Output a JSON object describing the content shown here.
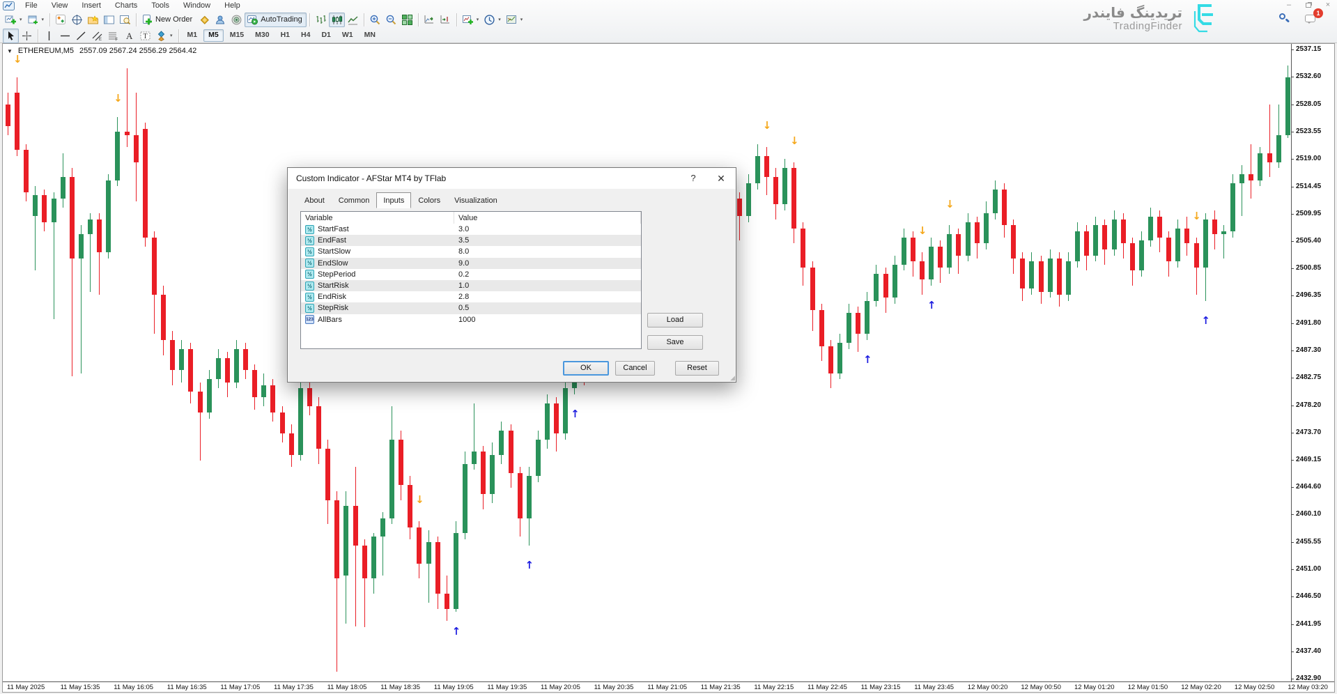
{
  "colors": {
    "up": "#2a925a",
    "down": "#ea1e26",
    "arrow_up": "#1e1ee0",
    "arrow_down": "#f5a81c",
    "accent_brand": "#35dbe5",
    "ok_border": "#4a97dd",
    "badge": "#e33d2e"
  },
  "window_controls": {
    "minimize": "minimize",
    "restore": "restore",
    "close": "close",
    "notification_count": "1"
  },
  "brand": {
    "name_fa": "تریدینگ فایندر",
    "name_en": "TradingFinder"
  },
  "menubar": {
    "items": [
      "File",
      "View",
      "Insert",
      "Charts",
      "Tools",
      "Window",
      "Help"
    ]
  },
  "toolbar": {
    "groups": [
      [
        {
          "icon": "new-chart",
          "caret": true
        },
        {
          "icon": "profiles",
          "caret": true
        }
      ],
      [
        {
          "icon": "market-watch"
        },
        {
          "icon": "data-window"
        },
        {
          "icon": "navigator"
        },
        {
          "icon": "terminal"
        },
        {
          "icon": "strategy-tester"
        }
      ],
      [
        {
          "icon": "new-order",
          "label": "New Order"
        },
        {
          "icon": "metaeditor"
        },
        {
          "icon": "community"
        },
        {
          "icon": "sound"
        },
        {
          "icon": "autotrading",
          "label": "AutoTrading",
          "active": true
        }
      ],
      [
        {
          "icon": "chart-bars"
        },
        {
          "icon": "chart-candles",
          "active": true
        },
        {
          "icon": "chart-line"
        }
      ],
      [
        {
          "icon": "zoom-in"
        },
        {
          "icon": "zoom-out"
        },
        {
          "icon": "tile-windows"
        }
      ],
      [
        {
          "icon": "auto-scroll"
        },
        {
          "icon": "chart-shift"
        }
      ],
      [
        {
          "icon": "indicators",
          "caret": true
        },
        {
          "icon": "periods",
          "caret": true
        },
        {
          "icon": "templates",
          "caret": true
        }
      ]
    ],
    "draw_tools": [
      {
        "icon": "cursor",
        "active": true
      },
      {
        "icon": "crosshair"
      },
      {
        "icon": "vertical-line"
      },
      {
        "icon": "horizontal-line"
      },
      {
        "icon": "trendline"
      },
      {
        "icon": "equidistant-channel"
      },
      {
        "icon": "fibonacci"
      },
      {
        "icon": "text"
      },
      {
        "icon": "text-label"
      },
      {
        "icon": "arrow-objects",
        "caret": true
      }
    ],
    "timeframes": [
      "M1",
      "M5",
      "M15",
      "M30",
      "H1",
      "H4",
      "D1",
      "W1",
      "MN"
    ],
    "active_timeframe": "M5"
  },
  "chart": {
    "symbol": "ETHEREUM,M5",
    "ohlc_line": "2557.09 2567.24 2556.29 2564.42",
    "price_axis": [
      "2537.15",
      "2532.60",
      "2528.05",
      "2523.55",
      "2519.00",
      "2514.45",
      "2509.95",
      "2505.40",
      "2500.85",
      "2496.35",
      "2491.80",
      "2487.30",
      "2482.75",
      "2478.20",
      "2473.70",
      "2469.15",
      "2464.60",
      "2460.10",
      "2455.55",
      "2451.00",
      "2446.50",
      "2441.95",
      "2437.40",
      "2432.90"
    ],
    "time_axis": [
      "11 May 2025",
      "11 May 15:35",
      "11 May 16:05",
      "11 May 16:35",
      "11 May 17:05",
      "11 May 17:35",
      "11 May 18:05",
      "11 May 18:35",
      "11 May 19:05",
      "11 May 19:35",
      "11 May 20:05",
      "11 May 20:35",
      "11 May 21:05",
      "11 May 21:35",
      "11 May 22:15",
      "11 May 22:45",
      "11 May 23:15",
      "11 May 23:45",
      "12 May 00:20",
      "12 May 00:50",
      "12 May 01:20",
      "12 May 01:50",
      "12 May 02:20",
      "12 May 02:50",
      "12 May 03:20"
    ]
  },
  "chart_data": {
    "type": "candlestick",
    "title": "ETHEREUM M5 candlestick chart with AFStar up/down signal arrows",
    "ylim": [
      2432.9,
      2537.15
    ],
    "grid": false,
    "candles": [
      [
        2528,
        2530,
        2523,
        2524.5
      ],
      [
        2530,
        2532.5,
        2519.5,
        2520.5
      ],
      [
        2520.5,
        2521.5,
        2512,
        2513.5
      ],
      [
        2509.5,
        2514.5,
        2500.5,
        2513
      ],
      [
        2513,
        2514,
        2507,
        2508.5
      ],
      [
        2508.5,
        2513.5,
        2492.5,
        2512.5
      ],
      [
        2512.5,
        2520,
        2511,
        2516
      ],
      [
        2516,
        2517.5,
        2483,
        2502.5
      ],
      [
        2502.5,
        2508,
        2483.5,
        2506.5
      ],
      [
        2506.5,
        2510,
        2497,
        2509
      ],
      [
        2509,
        2510,
        2496.5,
        2503.5
      ],
      [
        2503.5,
        2516.5,
        2502.5,
        2515.5
      ],
      [
        2515.5,
        2526,
        2514.5,
        2523.5
      ],
      [
        2523.5,
        2534,
        2521,
        2523
      ],
      [
        2523,
        2530,
        2512,
        2518.5
      ],
      [
        2524,
        2525,
        2504.5,
        2506
      ],
      [
        2506,
        2507,
        2490,
        2496.5
      ],
      [
        2496.5,
        2498,
        2486.5,
        2489
      ],
      [
        2489,
        2490.5,
        2481.5,
        2484
      ],
      [
        2484,
        2489,
        2482,
        2487.5
      ],
      [
        2487.5,
        2488.5,
        2478.5,
        2480.5
      ],
      [
        2480.5,
        2482,
        2469,
        2477
      ],
      [
        2477,
        2484,
        2476,
        2482.5
      ],
      [
        2482.5,
        2487.5,
        2481,
        2486
      ],
      [
        2486,
        2487,
        2479.5,
        2482
      ],
      [
        2482,
        2489,
        2481,
        2487.5
      ],
      [
        2487.5,
        2488.5,
        2482.5,
        2484
      ],
      [
        2484,
        2485,
        2477.5,
        2479.5
      ],
      [
        2479.5,
        2483.5,
        2478,
        2481.5
      ],
      [
        2481.5,
        2482.5,
        2475.5,
        2477
      ],
      [
        2477,
        2478,
        2472,
        2473.5
      ],
      [
        2473.5,
        2475,
        2468,
        2470
      ],
      [
        2470,
        2482,
        2469,
        2481
      ],
      [
        2481,
        2482,
        2476.5,
        2478
      ],
      [
        2478,
        2479.5,
        2468.5,
        2471
      ],
      [
        2471,
        2472.5,
        2458.5,
        2462.5
      ],
      [
        2462.5,
        2464,
        2434,
        2449.5
      ],
      [
        2450,
        2464,
        2442,
        2461.5
      ],
      [
        2461.5,
        2468,
        2441.5,
        2455
      ],
      [
        2455,
        2456,
        2441.5,
        2449.5
      ],
      [
        2449.5,
        2457,
        2447,
        2456.5
      ],
      [
        2456.5,
        2460.5,
        2450,
        2459.5
      ],
      [
        2459.5,
        2478,
        2458.5,
        2472.5
      ],
      [
        2472.5,
        2474,
        2462.5,
        2465
      ],
      [
        2465,
        2466.5,
        2456,
        2458
      ],
      [
        2458,
        2459,
        2449.5,
        2452
      ],
      [
        2452,
        2457.5,
        2445.5,
        2455.5
      ],
      [
        2455.5,
        2456.5,
        2444.5,
        2447
      ],
      [
        2447,
        2450,
        2442.5,
        2444.5
      ],
      [
        2444.5,
        2459,
        2444,
        2457
      ],
      [
        2457,
        2470.5,
        2456,
        2468.5
      ],
      [
        2468.5,
        2478.5,
        2467.5,
        2470.5
      ],
      [
        2470.5,
        2471.5,
        2461,
        2463.5
      ],
      [
        2463.5,
        2472,
        2462,
        2470
      ],
      [
        2470,
        2475.5,
        2468.5,
        2474
      ],
      [
        2474,
        2475,
        2464.5,
        2467
      ],
      [
        2467,
        2468,
        2456.5,
        2459.5
      ],
      [
        2459.5,
        2468,
        2455,
        2466.5
      ],
      [
        2466.5,
        2474,
        2465.5,
        2472.5
      ],
      [
        2472.5,
        2480,
        2471,
        2478.5
      ],
      [
        2478.5,
        2479.5,
        2470.5,
        2473.5
      ],
      [
        2473.5,
        2482.5,
        2472.5,
        2481
      ],
      [
        2481,
        2489.5,
        2480,
        2488
      ],
      [
        2488,
        2489,
        2481.5,
        2484.5
      ],
      [
        2484.5,
        2491.5,
        2483.5,
        2490
      ],
      [
        2490,
        2491,
        2483,
        2486.5
      ],
      [
        2486.5,
        2493.5,
        2485.5,
        2492
      ],
      [
        2492,
        2493,
        2485,
        2488.5
      ],
      [
        2488.5,
        2495.5,
        2487.5,
        2494
      ],
      [
        2494,
        2495,
        2487,
        2490.5
      ],
      [
        2490.5,
        2491.5,
        2484,
        2487
      ],
      [
        2487,
        2493.5,
        2486,
        2492
      ],
      [
        2492,
        2497.5,
        2491,
        2496
      ],
      [
        2496,
        2497,
        2490.5,
        2493
      ],
      [
        2493,
        2499.5,
        2492,
        2498
      ],
      [
        2498,
        2503.5,
        2497,
        2502
      ],
      [
        2502,
        2507,
        2496,
        2505.5
      ],
      [
        2505.5,
        2506.5,
        2498.5,
        2503
      ],
      [
        2503,
        2510,
        2502,
        2508.5
      ],
      [
        2508.5,
        2514,
        2507.5,
        2512.5
      ],
      [
        2512.5,
        2513.5,
        2505.5,
        2509.5
      ],
      [
        2509.5,
        2516.5,
        2508.5,
        2515
      ],
      [
        2515,
        2521.5,
        2514,
        2519.5
      ],
      [
        2519.5,
        2521,
        2513,
        2516
      ],
      [
        2516,
        2517.5,
        2509,
        2511.5
      ],
      [
        2511.5,
        2519,
        2510.5,
        2517.5
      ],
      [
        2517.5,
        2518.5,
        2505,
        2507.5
      ],
      [
        2507.5,
        2508.5,
        2498,
        2501
      ],
      [
        2501,
        2502,
        2490.5,
        2494
      ],
      [
        2494,
        2495,
        2485.5,
        2488
      ],
      [
        2488,
        2489,
        2481,
        2483.5
      ],
      [
        2483.5,
        2490,
        2482.5,
        2488.5
      ],
      [
        2488.5,
        2495,
        2487.5,
        2493.5
      ],
      [
        2493.5,
        2494.5,
        2487,
        2490
      ],
      [
        2490,
        2497,
        2489,
        2495.5
      ],
      [
        2495.5,
        2501.5,
        2494.5,
        2500
      ],
      [
        2500,
        2501,
        2493.5,
        2496
      ],
      [
        2496,
        2503,
        2495,
        2501.5
      ],
      [
        2501.5,
        2507.5,
        2500.5,
        2506
      ],
      [
        2506,
        2507,
        2499.5,
        2502
      ],
      [
        2502,
        2503.5,
        2496.5,
        2499
      ],
      [
        2499,
        2506,
        2498,
        2504.5
      ],
      [
        2504.5,
        2505.5,
        2498.5,
        2501
      ],
      [
        2501,
        2508,
        2500,
        2506.5
      ],
      [
        2506.5,
        2507.5,
        2500,
        2503
      ],
      [
        2503,
        2510,
        2502,
        2508.5
      ],
      [
        2508.5,
        2509.5,
        2502.5,
        2505
      ],
      [
        2505,
        2512,
        2504,
        2510
      ],
      [
        2510,
        2515.5,
        2509,
        2514
      ],
      [
        2514,
        2515,
        2506,
        2508
      ],
      [
        2508,
        2509,
        2500,
        2502.5
      ],
      [
        2502.5,
        2503.5,
        2495.5,
        2497.5
      ],
      [
        2497.5,
        2503.5,
        2496.5,
        2502
      ],
      [
        2502,
        2503,
        2495,
        2497
      ],
      [
        2497,
        2504,
        2496,
        2502.5
      ],
      [
        2502.5,
        2503.5,
        2494.5,
        2496.5
      ],
      [
        2496.5,
        2503.5,
        2495.5,
        2502
      ],
      [
        2502,
        2508.5,
        2501,
        2507
      ],
      [
        2507,
        2508,
        2500.5,
        2503
      ],
      [
        2503,
        2509.5,
        2502,
        2508
      ],
      [
        2508,
        2509,
        2501.5,
        2504
      ],
      [
        2504,
        2510.5,
        2503,
        2509
      ],
      [
        2509,
        2510,
        2502.5,
        2505
      ],
      [
        2505,
        2506,
        2498,
        2500.5
      ],
      [
        2500.5,
        2507,
        2499.5,
        2505.5
      ],
      [
        2505.5,
        2511,
        2504.5,
        2509.5
      ],
      [
        2509.5,
        2510.5,
        2503.5,
        2506
      ],
      [
        2506,
        2507,
        2499.5,
        2502
      ],
      [
        2502,
        2509,
        2501,
        2507.5
      ],
      [
        2507.5,
        2509.5,
        2503,
        2505
      ],
      [
        2505,
        2506,
        2496.5,
        2501
      ],
      [
        2501,
        2510,
        2495.5,
        2509
      ],
      [
        2509,
        2510.5,
        2504,
        2506.5
      ],
      [
        2506.5,
        2508,
        2502.5,
        2507
      ],
      [
        2507,
        2516.5,
        2506,
        2515
      ],
      [
        2515,
        2518,
        2509.5,
        2516.5
      ],
      [
        2516.5,
        2521.5,
        2512.5,
        2515.5
      ],
      [
        2515.5,
        2521,
        2514.5,
        2520
      ],
      [
        2520,
        2528,
        2516,
        2518.5
      ],
      [
        2518.5,
        2528,
        2517.5,
        2523
      ],
      [
        2523,
        2534.5,
        2522.5,
        2532.5
      ]
    ],
    "arrows": {
      "down": [
        {
          "bar": 1,
          "price": 2535
        },
        {
          "bar": 12,
          "price": 2528.5
        },
        {
          "bar": 45,
          "price": 2462
        },
        {
          "bar": 83,
          "price": 2524
        },
        {
          "bar": 86,
          "price": 2521.5
        },
        {
          "bar": 100,
          "price": 2506.5
        },
        {
          "bar": 103,
          "price": 2511
        },
        {
          "bar": 130,
          "price": 2509
        }
      ],
      "up": [
        {
          "bar": 49,
          "price": 2441
        },
        {
          "bar": 57,
          "price": 2452
        },
        {
          "bar": 62,
          "price": 2477
        },
        {
          "bar": 94,
          "price": 2486
        },
        {
          "bar": 101,
          "price": 2495
        },
        {
          "bar": 131,
          "price": 2492.5
        }
      ]
    }
  },
  "dialog": {
    "title": "Custom Indicator - AFStar MT4 by TFlab",
    "help_label": "?",
    "close_label": "✕",
    "tabs": [
      "About",
      "Common",
      "Inputs",
      "Colors",
      "Visualization"
    ],
    "active_tab": "Inputs",
    "table": {
      "headers": [
        "Variable",
        "Value"
      ],
      "rows": [
        {
          "icon": "half",
          "icon_label": "½",
          "name": "StartFast",
          "value": "3.0"
        },
        {
          "icon": "half",
          "icon_label": "½",
          "name": "EndFast",
          "value": "3.5"
        },
        {
          "icon": "half",
          "icon_label": "½",
          "name": "StartSlow",
          "value": "8.0"
        },
        {
          "icon": "half",
          "icon_label": "½",
          "name": "EndSlow",
          "value": "9.0"
        },
        {
          "icon": "half",
          "icon_label": "½",
          "name": "StepPeriod",
          "value": "0.2"
        },
        {
          "icon": "half",
          "icon_label": "½",
          "name": "StartRisk",
          "value": "1.0"
        },
        {
          "icon": "half",
          "icon_label": "½",
          "name": "EndRisk",
          "value": "2.8"
        },
        {
          "icon": "half",
          "icon_label": "½",
          "name": "StepRisk",
          "value": "0.5"
        },
        {
          "icon": "int",
          "icon_label": "123",
          "name": "AllBars",
          "value": "1000"
        }
      ]
    },
    "buttons": {
      "load": "Load",
      "save": "Save",
      "ok": "OK",
      "cancel": "Cancel",
      "reset": "Reset"
    }
  }
}
